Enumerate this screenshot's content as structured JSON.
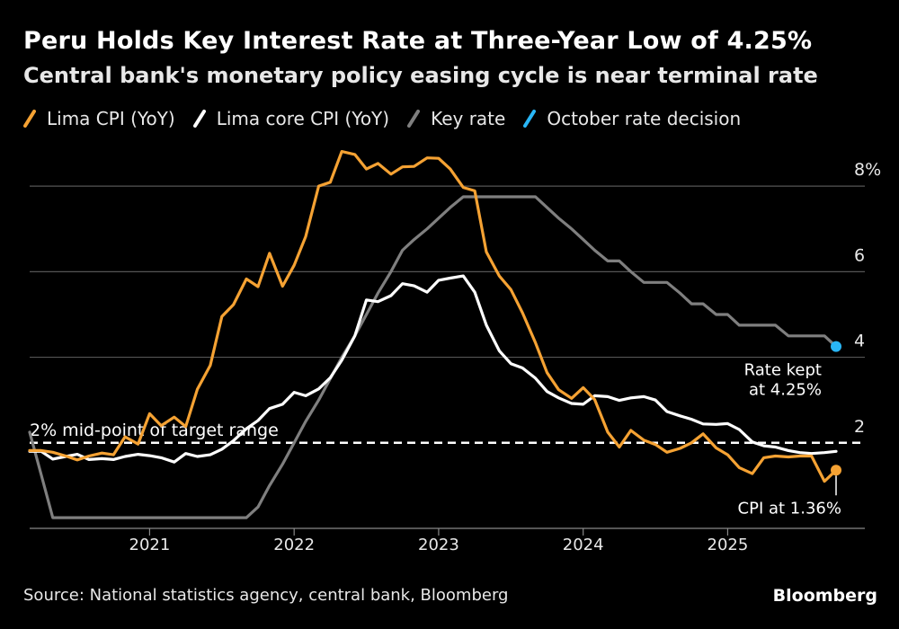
{
  "colors": {
    "background": "#000000",
    "cpi": "#f5a233",
    "core": "#ffffff",
    "key": "#7f7f7f",
    "decision": "#29b6f6",
    "grid": "#555555"
  },
  "chart_data": {
    "type": "line",
    "title": "Peru Holds Key Interest Rate at Three-Year Low of 4.25%",
    "subtitle": "Central bank's monetary policy easing cycle is near terminal rate",
    "xlabel": "",
    "ylabel": "",
    "xlim": [
      2020.17,
      2025.75
    ],
    "ylim": [
      0,
      9.2
    ],
    "y_ticks": [
      {
        "value": 2,
        "label": "2"
      },
      {
        "value": 4,
        "label": "4"
      },
      {
        "value": 6,
        "label": "6"
      },
      {
        "value": 8,
        "label": "8%"
      }
    ],
    "x_ticks": [
      {
        "value": 2021,
        "label": "2021"
      },
      {
        "value": 2022,
        "label": "2022"
      },
      {
        "value": 2023,
        "label": "2023"
      },
      {
        "value": 2024,
        "label": "2024"
      },
      {
        "value": 2025,
        "label": "2025"
      }
    ],
    "grid": true,
    "series": [
      {
        "name": "Lima CPI (YoY)",
        "color": "#f5a233",
        "x": [
          2020.17,
          2020.25,
          2020.33,
          2020.42,
          2020.5,
          2020.58,
          2020.67,
          2020.75,
          2020.83,
          2020.92,
          2021.0,
          2021.08,
          2021.17,
          2021.25,
          2021.33,
          2021.42,
          2021.5,
          2021.58,
          2021.67,
          2021.75,
          2021.83,
          2021.92,
          2022.0,
          2022.08,
          2022.17,
          2022.25,
          2022.33,
          2022.42,
          2022.5,
          2022.58,
          2022.67,
          2022.75,
          2022.83,
          2022.92,
          2023.0,
          2023.08,
          2023.17,
          2023.25,
          2023.33,
          2023.42,
          2023.5,
          2023.58,
          2023.67,
          2023.75,
          2023.83,
          2023.92,
          2024.0,
          2024.08,
          2024.17,
          2024.25,
          2024.33,
          2024.42,
          2024.5,
          2024.58,
          2024.67,
          2024.75,
          2024.83,
          2024.92,
          2025.0,
          2025.08,
          2025.17,
          2025.25,
          2025.33,
          2025.42,
          2025.5,
          2025.58,
          2025.67,
          2025.75
        ],
        "values": [
          1.82,
          1.82,
          1.78,
          1.69,
          1.6,
          1.69,
          1.76,
          1.72,
          2.14,
          1.97,
          2.68,
          2.4,
          2.6,
          2.38,
          3.25,
          3.81,
          4.95,
          5.23,
          5.83,
          5.65,
          6.43,
          5.66,
          6.15,
          6.82,
          8.0,
          8.09,
          8.81,
          8.74,
          8.4,
          8.53,
          8.28,
          8.45,
          8.46,
          8.66,
          8.65,
          8.4,
          7.97,
          7.89,
          6.46,
          5.9,
          5.58,
          5.04,
          4.34,
          3.64,
          3.24,
          3.04,
          3.29,
          3.01,
          2.25,
          1.9,
          2.29,
          2.06,
          1.96,
          1.78,
          1.87,
          2.0,
          2.21,
          1.88,
          1.72,
          1.42,
          1.28,
          1.65,
          1.69,
          1.67,
          1.69,
          1.69,
          1.1,
          1.36
        ]
      },
      {
        "name": "Lima core CPI (YoY)",
        "color": "#ffffff",
        "x": [
          2020.17,
          2020.25,
          2020.33,
          2020.42,
          2020.5,
          2020.58,
          2020.67,
          2020.75,
          2020.83,
          2020.92,
          2021.0,
          2021.08,
          2021.17,
          2021.25,
          2021.33,
          2021.42,
          2021.5,
          2021.58,
          2021.67,
          2021.75,
          2021.83,
          2021.92,
          2022.0,
          2022.08,
          2022.17,
          2022.25,
          2022.33,
          2022.42,
          2022.5,
          2022.58,
          2022.67,
          2022.75,
          2022.83,
          2022.92,
          2023.0,
          2023.08,
          2023.17,
          2023.25,
          2023.33,
          2023.42,
          2023.5,
          2023.58,
          2023.67,
          2023.75,
          2023.83,
          2023.92,
          2024.0,
          2024.08,
          2024.17,
          2024.25,
          2024.33,
          2024.42,
          2024.5,
          2024.58,
          2024.67,
          2024.75,
          2024.83,
          2024.92,
          2025.0,
          2025.08,
          2025.17,
          2025.25,
          2025.33,
          2025.42,
          2025.5,
          2025.58,
          2025.67,
          2025.75
        ],
        "values": [
          1.8,
          1.8,
          1.62,
          1.68,
          1.73,
          1.61,
          1.63,
          1.61,
          1.68,
          1.73,
          1.7,
          1.65,
          1.55,
          1.75,
          1.68,
          1.72,
          1.85,
          2.05,
          2.33,
          2.52,
          2.8,
          2.9,
          3.18,
          3.1,
          3.26,
          3.52,
          3.93,
          4.5,
          5.34,
          5.3,
          5.44,
          5.72,
          5.67,
          5.52,
          5.8,
          5.85,
          5.9,
          5.52,
          4.75,
          4.15,
          3.85,
          3.75,
          3.51,
          3.2,
          3.05,
          2.92,
          2.9,
          3.1,
          3.08,
          2.99,
          3.05,
          3.08,
          3.0,
          2.73,
          2.63,
          2.55,
          2.44,
          2.43,
          2.45,
          2.31,
          2.02,
          1.93,
          1.9,
          1.82,
          1.77,
          1.75,
          1.77,
          1.8
        ]
      },
      {
        "name": "Key rate",
        "color": "#7f7f7f",
        "x": [
          2020.17,
          2020.25,
          2020.33,
          2020.42,
          2020.5,
          2021.67,
          2021.75,
          2021.83,
          2021.92,
          2022.0,
          2022.08,
          2022.17,
          2022.25,
          2022.33,
          2022.42,
          2022.5,
          2022.58,
          2022.67,
          2022.75,
          2022.83,
          2022.92,
          2023.0,
          2023.08,
          2023.17,
          2023.25,
          2023.33,
          2023.42,
          2023.5,
          2023.58,
          2023.67,
          2023.75,
          2023.83,
          2023.92,
          2024.0,
          2024.08,
          2024.17,
          2024.25,
          2024.33,
          2024.42,
          2024.5,
          2024.58,
          2024.67,
          2024.75,
          2024.83,
          2024.92,
          2025.0,
          2025.08,
          2025.17,
          2025.25,
          2025.33,
          2025.42,
          2025.5,
          2025.58,
          2025.67,
          2025.75
        ],
        "values": [
          2.25,
          1.25,
          0.25,
          0.25,
          0.25,
          0.25,
          0.5,
          1.0,
          1.5,
          2.0,
          2.5,
          3.0,
          3.5,
          4.0,
          4.5,
          5.0,
          5.5,
          6.0,
          6.5,
          6.75,
          7.0,
          7.25,
          7.5,
          7.75,
          7.75,
          7.75,
          7.75,
          7.75,
          7.75,
          7.75,
          7.5,
          7.25,
          7.0,
          6.75,
          6.5,
          6.25,
          6.25,
          6.0,
          5.75,
          5.75,
          5.75,
          5.5,
          5.25,
          5.25,
          5.0,
          5.0,
          4.75,
          4.75,
          4.75,
          4.75,
          4.5,
          4.5,
          4.5,
          4.5,
          4.25
        ]
      }
    ],
    "legend": [
      {
        "label": "Lima CPI (YoY)",
        "color": "#f5a233"
      },
      {
        "label": "Lima core CPI (YoY)",
        "color": "#ffffff"
      },
      {
        "label": "Key rate",
        "color": "#7f7f7f"
      },
      {
        "label": "October rate decision",
        "color": "#29b6f6"
      }
    ],
    "reference_line": {
      "value": 2,
      "label": "2% mid-point of target range"
    },
    "highlight_points": [
      {
        "name": "October rate decision",
        "x": 2025.75,
        "y": 4.25,
        "color": "#29b6f6"
      },
      {
        "name": "Latest CPI",
        "x": 2025.75,
        "y": 1.36,
        "color": "#f5a233"
      }
    ],
    "annotations": [
      {
        "line1": "Rate kept",
        "line2": "at 4.25%"
      },
      {
        "line1": "CPI at 1.36%"
      }
    ],
    "legend_position": "top-left"
  },
  "footer": {
    "source": "Source: National statistics agency, central bank, Bloomberg",
    "brand": "Bloomberg"
  }
}
